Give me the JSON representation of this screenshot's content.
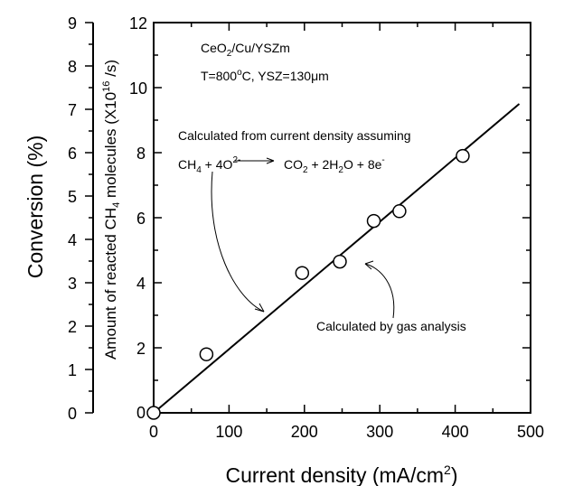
{
  "chart_data": {
    "type": "scatter",
    "xlabel": "Current density (mA/cm²)",
    "ylabel_left": "Conversion (%)",
    "ylabel_right": "Amount of reacted CH₄ molecules (X10¹⁶/s)",
    "xlim": [
      0,
      500
    ],
    "ylim_left": [
      0,
      9
    ],
    "ylim_right": [
      0,
      12
    ],
    "x_ticks": [
      0,
      100,
      200,
      300,
      400,
      500
    ],
    "y_ticks_left": [
      0,
      1,
      2,
      3,
      4,
      5,
      6,
      7,
      8,
      9
    ],
    "y_ticks_right": [
      0,
      2,
      4,
      6,
      8,
      10,
      12
    ],
    "series": [
      {
        "marker": "open-circle",
        "x": [
          0,
          70,
          197,
          247,
          292,
          326,
          410
        ],
        "y": [
          0,
          1.8,
          4.3,
          4.65,
          5.9,
          6.2,
          7.9
        ]
      },
      {
        "style": "solid-line",
        "x": [
          0,
          485
        ],
        "y": [
          0,
          9.5
        ]
      }
    ],
    "annotations": {
      "sample": "CeO₂/Cu/YSZm",
      "conditions": "T=800°C, YSZ=130μm",
      "calc_current": "Calculated from current density assuming",
      "reaction": "CH₄ + 4O²⁻ → CO₂ + 2H₂O + 8e⁻",
      "calc_gas": "Calculated by gas analysis"
    }
  }
}
